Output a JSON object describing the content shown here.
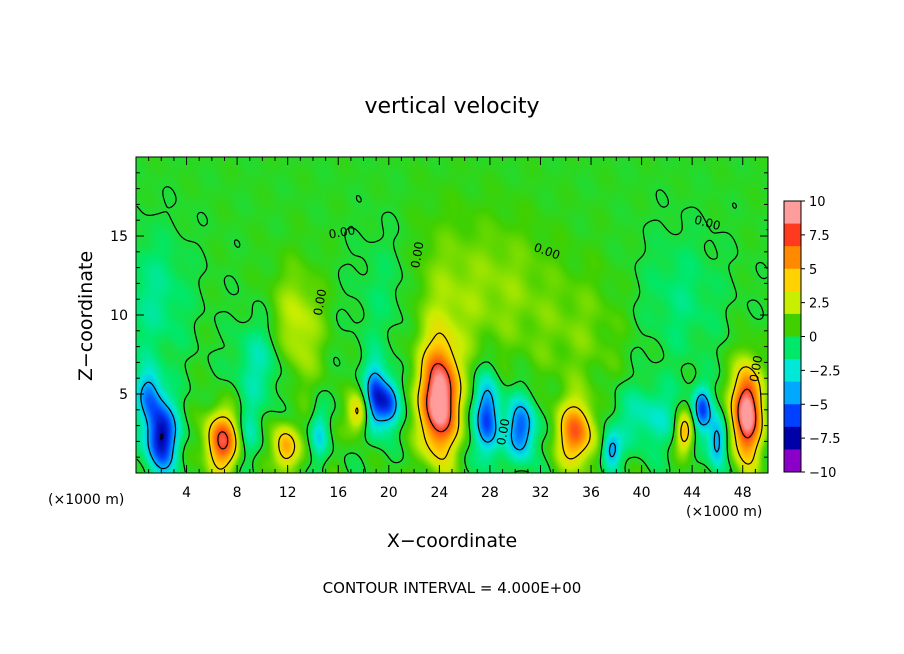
{
  "chart_data": {
    "type": "heatmap",
    "title": "vertical velocity",
    "xlabel": "X−coordinate",
    "ylabel": "Z−coordinate",
    "x_unit_left": "(×1000 m)",
    "x_unit_right": "(×1000 m)",
    "footer": "CONTOUR INTERVAL = 4.000E+00",
    "xlim": [
      0,
      50
    ],
    "ylim": [
      0,
      20
    ],
    "x_ticks": [
      4,
      8,
      12,
      16,
      20,
      24,
      28,
      32,
      36,
      40,
      44,
      48
    ],
    "x_tick_labels": [
      "4",
      "8",
      "12",
      "16",
      "20",
      "24",
      "28",
      "32",
      "36",
      "40",
      "44",
      "48"
    ],
    "y_ticks": [
      5,
      10,
      15
    ],
    "y_tick_labels": [
      "5",
      "10",
      "15"
    ],
    "contour_labels": [
      {
        "text": "0.00",
        "x": 16.3,
        "z": 15.2,
        "angle": -10
      },
      {
        "text": "0.00",
        "x": 22.3,
        "z": 13.8,
        "angle": -80
      },
      {
        "text": "0.00",
        "x": 14.6,
        "z": 10.8,
        "angle": -80
      },
      {
        "text": "0.00",
        "x": 32.5,
        "z": 14.0,
        "angle": 20
      },
      {
        "text": "0.00",
        "x": 45.2,
        "z": 15.8,
        "angle": 15
      },
      {
        "text": "0.00",
        "x": 29.1,
        "z": 2.6,
        "angle": -80
      },
      {
        "text": "0.00",
        "x": 49.1,
        "z": 6.6,
        "angle": -80
      }
    ],
    "colorbar": {
      "min": -10,
      "max": 10,
      "labels": [
        "10",
        "7.5",
        "5",
        "2.5",
        "0",
        "−2.5",
        "−5",
        "−7.5",
        "−10"
      ],
      "colors": [
        "#ff9c9c",
        "#ff3a1e",
        "#ff8a00",
        "#ffd200",
        "#c8ee00",
        "#40d000",
        "#00e86a",
        "#00e8d8",
        "#00a8ff",
        "#0040ff",
        "#0000a8",
        "#8a00c8"
      ]
    },
    "field": {
      "background": 0.3,
      "cells": [
        {
          "x": 2.0,
          "z": 2.3,
          "sx": 0.9,
          "sz": 1.6,
          "w": -8.5
        },
        {
          "x": 1.0,
          "z": 5.0,
          "sx": 0.7,
          "sz": 1.2,
          "w": -4.5
        },
        {
          "x": 6.8,
          "z": 2.0,
          "sx": 0.9,
          "sz": 1.3,
          "w": 8.0
        },
        {
          "x": 9.0,
          "z": 2.5,
          "sx": 0.6,
          "sz": 1.5,
          "w": -2.0
        },
        {
          "x": 11.8,
          "z": 1.6,
          "sx": 0.7,
          "sz": 1.0,
          "w": 5.5
        },
        {
          "x": 14.5,
          "z": 2.5,
          "sx": 0.5,
          "sz": 1.2,
          "w": -3.0
        },
        {
          "x": 12.6,
          "z": 9.0,
          "sx": 1.5,
          "sz": 2.6,
          "w": 2.8
        },
        {
          "x": 17.6,
          "z": 3.8,
          "sx": 0.6,
          "sz": 0.9,
          "w": 4.5
        },
        {
          "x": 18.9,
          "z": 4.8,
          "sx": 0.6,
          "sz": 1.5,
          "w": -6.5
        },
        {
          "x": 20.0,
          "z": 4.4,
          "sx": 0.6,
          "sz": 1.1,
          "w": -6.0
        },
        {
          "x": 24.0,
          "z": 4.5,
          "sx": 1.0,
          "sz": 2.3,
          "w": 11.0
        },
        {
          "x": 24.0,
          "z": 10.0,
          "sx": 2.2,
          "sz": 4.0,
          "w": 1.8
        },
        {
          "x": 27.8,
          "z": 3.5,
          "sx": 0.7,
          "sz": 1.8,
          "w": -7.0
        },
        {
          "x": 30.5,
          "z": 2.8,
          "sx": 0.8,
          "sz": 1.4,
          "w": -6.5
        },
        {
          "x": 34.8,
          "z": 2.5,
          "sx": 1.0,
          "sz": 1.4,
          "w": 7.0
        },
        {
          "x": 37.6,
          "z": 1.4,
          "sx": 0.5,
          "sz": 0.8,
          "w": -5.0
        },
        {
          "x": 40.5,
          "z": 3.5,
          "sx": 2.0,
          "sz": 1.5,
          "w": -2.6
        },
        {
          "x": 43.4,
          "z": 2.6,
          "sx": 0.5,
          "sz": 0.9,
          "w": 5.5
        },
        {
          "x": 44.8,
          "z": 4.0,
          "sx": 0.5,
          "sz": 1.0,
          "w": -6.0
        },
        {
          "x": 46.0,
          "z": 2.0,
          "sx": 0.5,
          "sz": 1.2,
          "w": -5.5
        },
        {
          "x": 48.3,
          "z": 3.8,
          "sx": 0.8,
          "sz": 2.0,
          "w": 11.0
        },
        {
          "x": 10.0,
          "z": 7.0,
          "sx": 1.5,
          "sz": 2.0,
          "w": -2.6
        },
        {
          "x": 1.5,
          "z": 11.0,
          "sx": 2.0,
          "sz": 3.0,
          "w": -1.8
        },
        {
          "x": 35.0,
          "z": 9.0,
          "sx": 3.0,
          "sz": 3.0,
          "w": 1.2
        },
        {
          "x": 20.0,
          "z": 11.0,
          "sx": 2.0,
          "sz": 3.0,
          "w": -1.2
        },
        {
          "x": 43.0,
          "z": 11.0,
          "sx": 2.5,
          "sz": 3.0,
          "w": -1.4
        },
        {
          "x": 29.0,
          "z": 12.0,
          "sx": 2.5,
          "sz": 3.0,
          "w": 1.4
        }
      ]
    }
  }
}
